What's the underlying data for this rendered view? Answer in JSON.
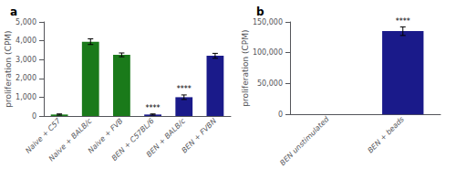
{
  "chart_data": [
    {
      "type": "bar",
      "title": "a",
      "categories": [
        "Naive + C57",
        "Naive + BALB/c",
        "Naive + FVB",
        "BEN + C57BL/6",
        "BEN + BALB/c",
        "BEN + FVBN"
      ],
      "values": [
        80,
        3950,
        3250,
        80,
        1000,
        3200
      ],
      "errors": [
        30,
        150,
        100,
        30,
        120,
        130
      ],
      "colors": [
        "#1a7a1a",
        "#1a7a1a",
        "#1a7a1a",
        "#1a1a8a",
        "#1a1a8a",
        "#1a1a8a"
      ],
      "ylabel": "proliferation (CPM)",
      "ylim": [
        0,
        5000
      ],
      "yticks": [
        0,
        1000,
        2000,
        3000,
        4000,
        5000
      ],
      "grid": false,
      "annotations": [
        {
          "text": "****",
          "category": "BEN + C57BL/6"
        },
        {
          "text": "****",
          "category": "BEN + BALB/c"
        }
      ]
    },
    {
      "type": "bar",
      "title": "b",
      "categories": [
        "BEN unstimulated",
        "BEN + beads"
      ],
      "values": [
        0,
        135000
      ],
      "errors": [
        0,
        7000
      ],
      "colors": [
        "#1a1a8a",
        "#1a1a8a"
      ],
      "ylabel": "proliferation (CPM)",
      "ylim": [
        0,
        150000
      ],
      "yticks": [
        0,
        50000,
        100000,
        150000
      ],
      "grid": false,
      "annotations": [
        {
          "text": "****",
          "category": "BEN + beads"
        }
      ]
    }
  ]
}
